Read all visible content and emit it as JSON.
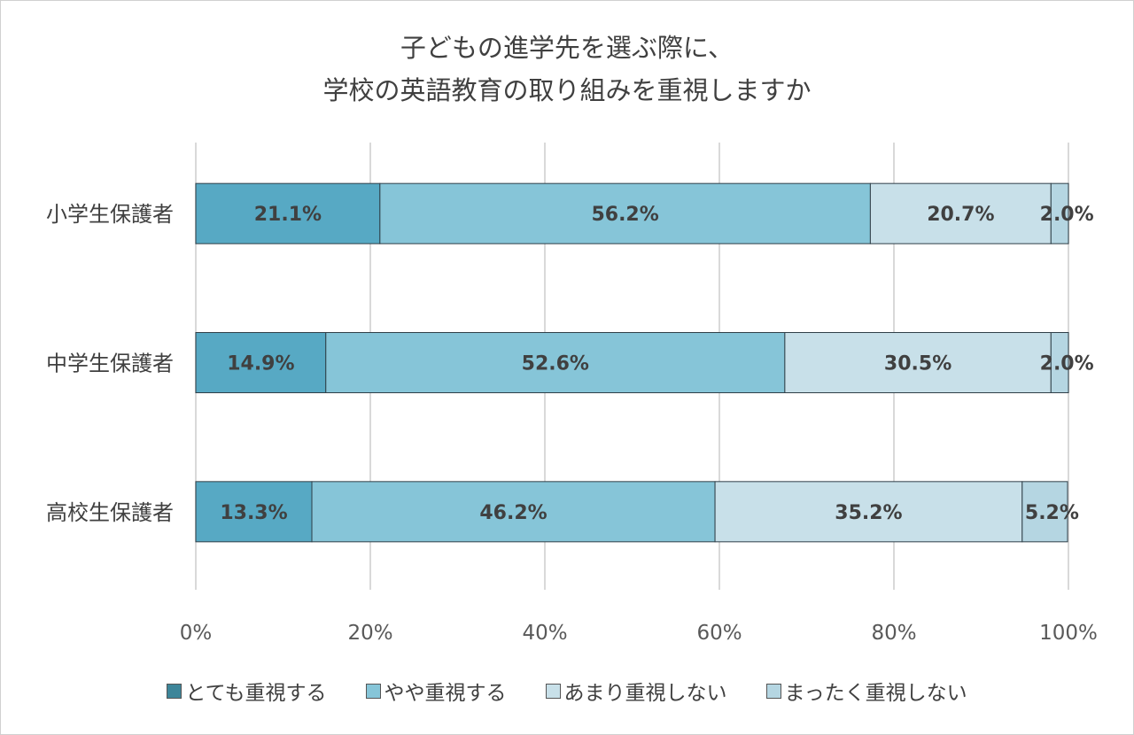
{
  "chart_data": {
    "type": "bar",
    "orientation": "horizontal",
    "stacked": "percent",
    "title_lines": [
      "子どもの進学先を選ぶ際に、",
      "学校の英語教育の取り組みを重視しますか"
    ],
    "categories": [
      "小学生保護者",
      "中学生保護者",
      "高校生保護者"
    ],
    "series": [
      {
        "name": "とても重視する",
        "values": [
          21.1,
          14.9,
          13.3
        ],
        "color": "#57a9c4",
        "legend_color": "#3d8599"
      },
      {
        "name": "やや重視する",
        "values": [
          56.2,
          52.6,
          46.2
        ],
        "color": "#86c5d8",
        "legend_color": "#86c5d8"
      },
      {
        "name": "あまり重視しない",
        "values": [
          20.7,
          30.5,
          35.2
        ],
        "color": "#c8e0e9",
        "legend_color": "#c8e0e9"
      },
      {
        "name": "まったく重視しない",
        "values": [
          2.0,
          2.0,
          5.2
        ],
        "color": "#b5d6e2",
        "legend_color": "#b5d6e2"
      }
    ],
    "xlim": [
      0,
      100
    ],
    "xticks": [
      "0%",
      "20%",
      "40%",
      "60%",
      "80%",
      "100%"
    ],
    "grid": "vertical",
    "legend_position": "bottom"
  }
}
